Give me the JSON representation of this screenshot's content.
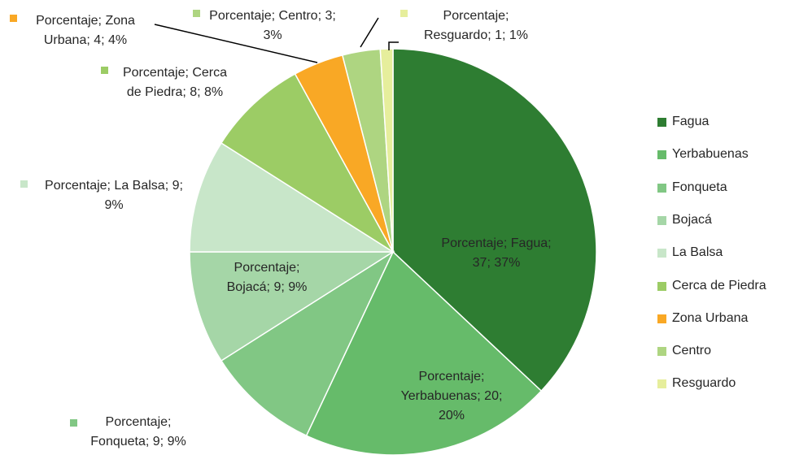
{
  "chart_data": {
    "type": "pie",
    "categories": [
      "Fagua",
      "Yerbabuenas",
      "Fonqueta",
      "Bojacá",
      "La Balsa",
      "Cerca de Piedra",
      "Zona Urbana",
      "Centro",
      "Resguardo"
    ],
    "values": [
      37,
      20,
      9,
      9,
      9,
      8,
      4,
      3,
      1
    ],
    "value_labels": [
      "Porcentaje; Fagua; 37; 37%",
      "Porcentaje; Yerbabuenas; 20; 20%",
      "Porcentaje; Fonqueta; 9; 9%",
      "Porcentaje; Bojacá; 9; 9%",
      "Porcentaje; La Balsa; 9; 9%",
      "Porcentaje; Cerca de Piedra; 8; 8%",
      "Porcentaje; Zona Urbana; 4; 4%",
      "Porcentaje; Centro; 3; 3%",
      "Porcentaje; Resguardo; 1; 1%"
    ],
    "colors": [
      "#2e7d32",
      "#66bb6a",
      "#81c784",
      "#a5d6a7",
      "#c8e6c9",
      "#9ccc65",
      "#f9a825",
      "#aed581",
      "#e6ee9c"
    ],
    "legend": "right"
  }
}
